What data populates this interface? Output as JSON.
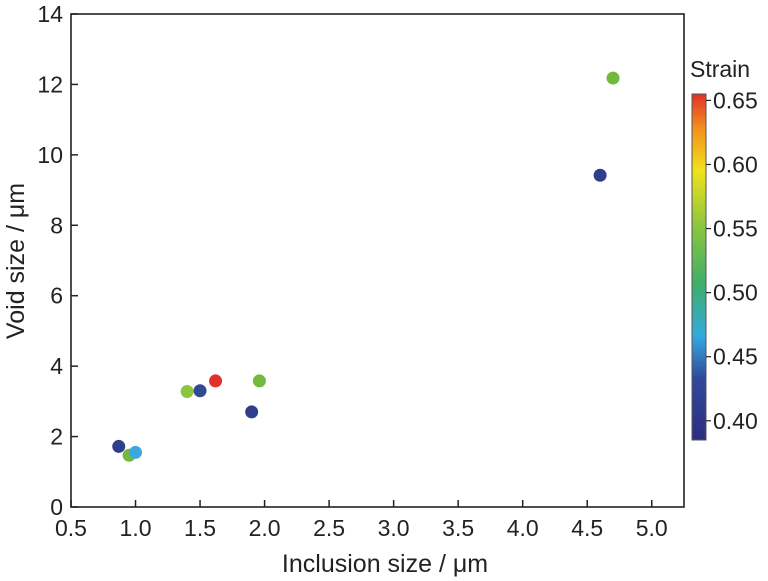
{
  "chart_data": {
    "type": "scatter",
    "title": "",
    "xlabel": "Inclusion size / μm",
    "ylabel": "Void size / μm",
    "xlim": [
      0.5,
      5.25
    ],
    "ylim": [
      0,
      14
    ],
    "x_ticks": [
      0.5,
      1.0,
      1.5,
      2.0,
      2.5,
      3.0,
      3.5,
      4.0,
      4.5,
      5.0
    ],
    "x_tick_labels": [
      "0.5",
      "1.0",
      "1.5",
      "2.0",
      "2.5",
      "3.0",
      "3.5",
      "4.0",
      "4.5",
      "5.0"
    ],
    "y_ticks": [
      0,
      2,
      4,
      6,
      8,
      10,
      12,
      14
    ],
    "y_tick_labels": [
      "0",
      "2",
      "4",
      "6",
      "8",
      "10",
      "12",
      "14"
    ],
    "grid": false,
    "colorbar": {
      "title": "Strain",
      "range": [
        0.385,
        0.655
      ],
      "ticks": [
        0.4,
        0.45,
        0.5,
        0.55,
        0.6,
        0.65
      ],
      "tick_labels": [
        "0.40",
        "0.45",
        "0.50",
        "0.55",
        "0.60",
        "0.65"
      ],
      "placement": "right"
    },
    "points": [
      {
        "x": 0.87,
        "y": 1.72,
        "strain": 0.4,
        "color": "#2f3f8c"
      },
      {
        "x": 0.95,
        "y": 1.47,
        "strain": 0.54,
        "color": "#72b93e"
      },
      {
        "x": 1.0,
        "y": 1.55,
        "strain": 0.46,
        "color": "#3ea7e0"
      },
      {
        "x": 1.4,
        "y": 3.28,
        "strain": 0.55,
        "color": "#8cc63f"
      },
      {
        "x": 1.5,
        "y": 3.3,
        "strain": 0.41,
        "color": "#324a94"
      },
      {
        "x": 1.62,
        "y": 3.58,
        "strain": 0.65,
        "color": "#e0312b"
      },
      {
        "x": 1.9,
        "y": 2.7,
        "strain": 0.4,
        "color": "#2f3f8c"
      },
      {
        "x": 1.96,
        "y": 3.58,
        "strain": 0.54,
        "color": "#72b93e"
      },
      {
        "x": 4.6,
        "y": 9.42,
        "strain": 0.4,
        "color": "#2f3f8c"
      },
      {
        "x": 4.7,
        "y": 12.18,
        "strain": 0.54,
        "color": "#72b93e"
      }
    ]
  }
}
